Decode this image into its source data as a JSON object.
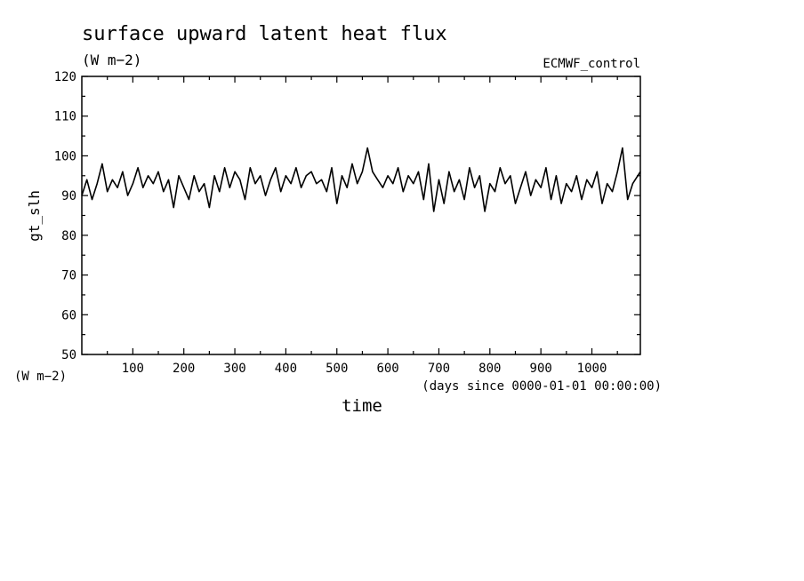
{
  "chart_data": {
    "type": "line",
    "title": "surface upward latent heat flux",
    "subtitle": "(W m−2)",
    "run_label": "ECMWF_control",
    "ylabel": "gt_slh",
    "yunits": "(W m−2)",
    "xlabel": "time",
    "xunits": "(days since 0000-01-01 00:00:00)",
    "xlim": [
      0,
      1095
    ],
    "ylim": [
      50,
      120
    ],
    "xticks": [
      100,
      200,
      300,
      400,
      500,
      600,
      700,
      800,
      900,
      1000
    ],
    "yticks": [
      50,
      60,
      70,
      80,
      90,
      100,
      110,
      120
    ],
    "grid": false,
    "series": [
      {
        "color": "#000000",
        "x": [
          0,
          10,
          20,
          30,
          40,
          50,
          60,
          70,
          80,
          90,
          100,
          110,
          120,
          130,
          140,
          150,
          160,
          170,
          180,
          190,
          200,
          210,
          220,
          230,
          240,
          250,
          260,
          270,
          280,
          290,
          300,
          310,
          320,
          330,
          340,
          350,
          360,
          370,
          380,
          390,
          400,
          410,
          420,
          430,
          440,
          450,
          460,
          470,
          480,
          490,
          500,
          510,
          520,
          530,
          540,
          550,
          560,
          570,
          580,
          590,
          600,
          610,
          620,
          630,
          640,
          650,
          660,
          670,
          680,
          690,
          700,
          710,
          720,
          730,
          740,
          750,
          760,
          770,
          780,
          790,
          800,
          810,
          820,
          830,
          840,
          850,
          860,
          870,
          880,
          890,
          900,
          910,
          920,
          930,
          940,
          950,
          960,
          970,
          980,
          990,
          1000,
          1010,
          1020,
          1030,
          1040,
          1050,
          1060,
          1070,
          1080,
          1090,
          1095
        ],
        "y": [
          90,
          94,
          89,
          93,
          98,
          91,
          94,
          92,
          96,
          90,
          93,
          97,
          92,
          95,
          93,
          96,
          91,
          94,
          87,
          95,
          92,
          89,
          95,
          91,
          93,
          87,
          95,
          91,
          97,
          92,
          96,
          94,
          89,
          97,
          93,
          95,
          90,
          94,
          97,
          91,
          95,
          93,
          97,
          92,
          95,
          96,
          93,
          94,
          91,
          97,
          88,
          95,
          92,
          98,
          93,
          96,
          102,
          96,
          94,
          92,
          95,
          93,
          97,
          91,
          95,
          93,
          96,
          89,
          98,
          86,
          94,
          88,
          96,
          91,
          94,
          89,
          97,
          92,
          95,
          86,
          93,
          91,
          97,
          93,
          95,
          88,
          92,
          96,
          90,
          94,
          92,
          97,
          89,
          95,
          88,
          93,
          91,
          95,
          89,
          94,
          92,
          96,
          88,
          93,
          91,
          96,
          102,
          89,
          93,
          95,
          96
        ]
      }
    ]
  }
}
